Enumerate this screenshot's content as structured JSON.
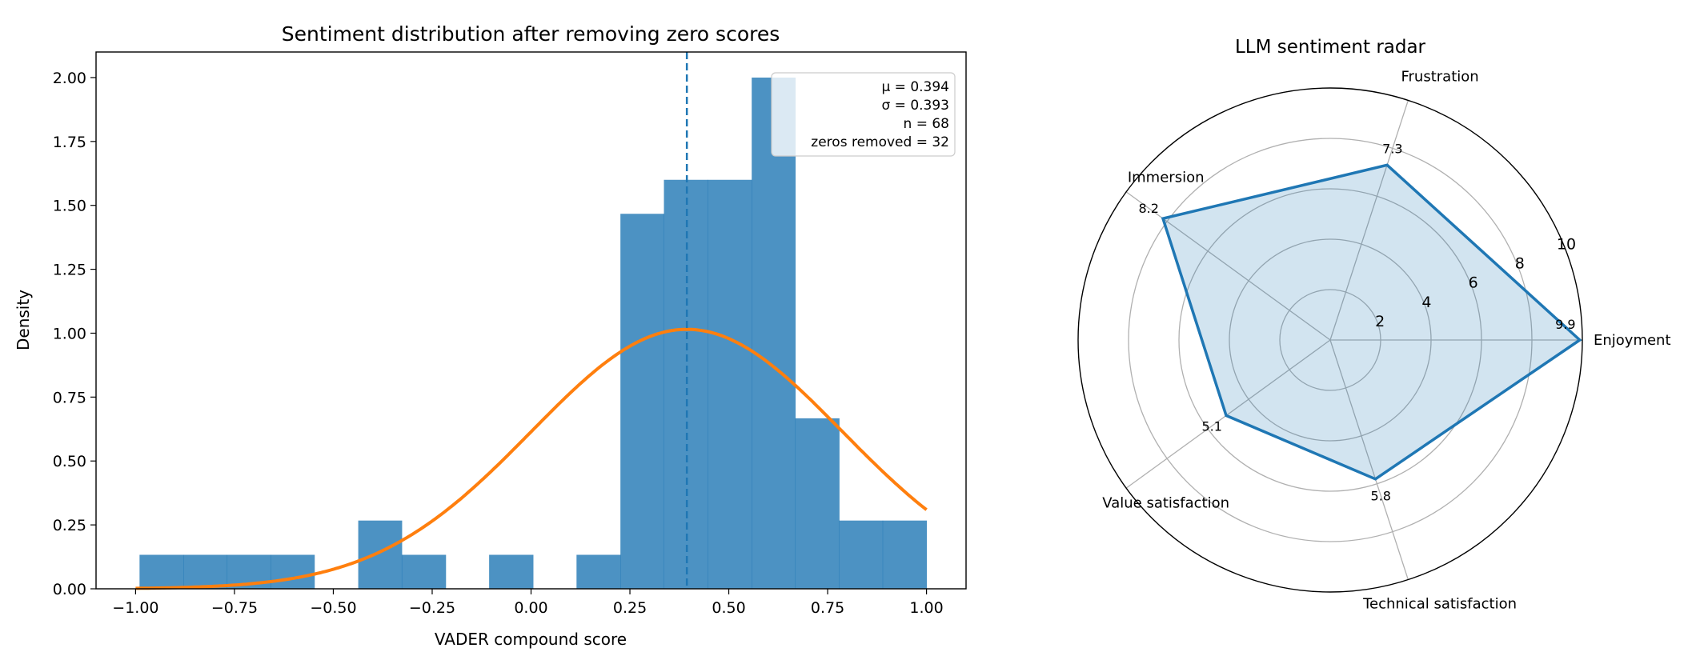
{
  "chart_data": [
    {
      "type": "bar",
      "subtype": "histogram",
      "title": "Sentiment distribution after removing zero scores",
      "xlabel": "VADER compound score",
      "ylabel": "Density",
      "xlim": [
        -1.1,
        1.1
      ],
      "ylim": [
        0,
        2.1
      ],
      "xticks": [
        "−1.00",
        "−0.75",
        "−0.50",
        "−0.25",
        "0.00",
        "0.25",
        "0.50",
        "0.75",
        "1.00"
      ],
      "xtick_values": [
        -1,
        -0.75,
        -0.5,
        -0.25,
        0,
        0.25,
        0.5,
        0.75,
        1
      ],
      "yticks": [
        "0.00",
        "0.25",
        "0.50",
        "0.75",
        "1.00",
        "1.25",
        "1.50",
        "1.75",
        "2.00"
      ],
      "ytick_values": [
        0,
        0.25,
        0.5,
        0.75,
        1,
        1.25,
        1.5,
        1.75,
        2
      ],
      "bin_edges": [
        -0.99,
        -0.879,
        -0.769,
        -0.658,
        -0.548,
        -0.437,
        -0.327,
        -0.216,
        -0.106,
        0.005,
        0.115,
        0.226,
        0.336,
        0.447,
        0.558,
        0.668,
        0.779,
        0.889,
        1.0
      ],
      "density": [
        0.133,
        0.133,
        0.133,
        0.133,
        0,
        0.267,
        0.133,
        0,
        0.133,
        0,
        0.133,
        1.467,
        1.6,
        1.6,
        2.0,
        0.667,
        0.267,
        0.267
      ],
      "bar_color": "#1f77b4",
      "bar_alpha": 0.8,
      "normal_fit": {
        "mu": 0.394,
        "sigma": 0.393,
        "x_range": [
          -1,
          1
        ],
        "color": "#ff7f0e"
      },
      "mean_line": {
        "x": 0.394,
        "style": "dashed",
        "color": "#1f77b4"
      },
      "stats_box": {
        "location": "top-right",
        "lines": [
          "μ = 0.394",
          "σ = 0.393",
          "n = 68",
          "zeros removed = 32"
        ]
      },
      "grid": false
    },
    {
      "type": "radar",
      "title": "LLM sentiment radar",
      "categories": [
        "Enjoyment",
        "Frustration",
        "Immersion",
        "Value satisfaction",
        "Technical satisfaction"
      ],
      "values": [
        9.9,
        7.3,
        8.2,
        5.1,
        5.8
      ],
      "value_labels": [
        "9.9",
        "7.3",
        "8.2",
        "5.1",
        "5.8"
      ],
      "rlim": [
        0,
        10
      ],
      "rticks": [
        "2",
        "4",
        "6",
        "8",
        "10"
      ],
      "rtick_values": [
        2,
        4,
        6,
        8,
        10
      ],
      "line_color": "#1f77b4",
      "fill_alpha": 0.2,
      "grid": true
    }
  ]
}
